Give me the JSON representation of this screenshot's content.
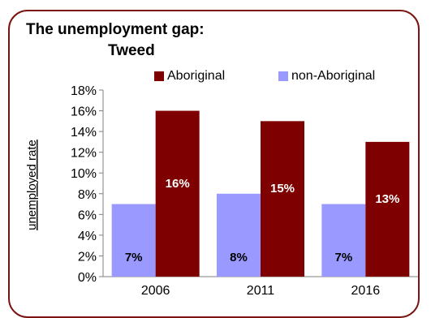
{
  "chart_data": {
    "type": "bar",
    "title_line1": "The unemployment gap:",
    "title_line2": "Tweed",
    "xlabel": "",
    "ylabel": "unemployed rate",
    "categories": [
      "2006",
      "2011",
      "2016"
    ],
    "series": [
      {
        "name": "non-Aboriginal",
        "values": [
          7,
          8,
          7
        ],
        "labels": [
          "7%",
          "8%",
          "7%"
        ],
        "color": "#9999ff"
      },
      {
        "name": "Aboriginal",
        "values": [
          16,
          15,
          13
        ],
        "labels": [
          "16%",
          "15%",
          "13%"
        ],
        "color": "#7f0000"
      }
    ],
    "legend_order": [
      "Aboriginal",
      "non-Aboriginal"
    ],
    "legend_position": "top",
    "ylim": [
      0,
      18
    ],
    "yticks": [
      "0%",
      "2%",
      "4%",
      "6%",
      "8%",
      "10%",
      "12%",
      "14%",
      "16%",
      "18%"
    ],
    "grid": false
  },
  "colors": {
    "frame": "#7a1410",
    "axis": "#808080"
  }
}
